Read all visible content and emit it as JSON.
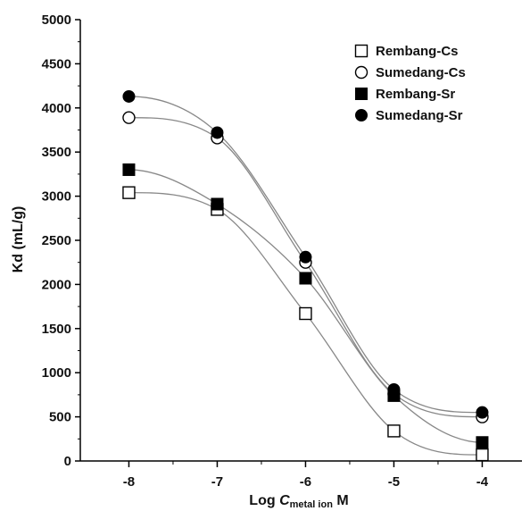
{
  "chart_data": {
    "type": "scatter",
    "xlabel": {
      "prefix": "Log ",
      "var": "C",
      "subscript": "metal ion",
      "suffix": " M"
    },
    "ylabel": "Kd (mL/g)",
    "x": [
      -8,
      -7,
      -6,
      -5,
      -4
    ],
    "xlim": [
      -8.55,
      -3.55
    ],
    "ylim": [
      0,
      5000
    ],
    "xticks": [
      "-8",
      "-7",
      "-6",
      "-5",
      "-4"
    ],
    "yticks": [
      "0",
      "500",
      "1000",
      "1500",
      "2000",
      "2500",
      "3000",
      "3500",
      "4000",
      "4500",
      "5000"
    ],
    "legend_position": "top-right",
    "series": [
      {
        "name": "Rembang-Cs",
        "marker": "open-square",
        "values": [
          3040,
          2850,
          1670,
          340,
          70
        ]
      },
      {
        "name": "Sumedang-Cs",
        "marker": "open-circle",
        "values": [
          3890,
          3660,
          2250,
          760,
          500
        ]
      },
      {
        "name": "Rembang-Sr",
        "marker": "filled-square",
        "values": [
          3300,
          2910,
          2070,
          740,
          210
        ]
      },
      {
        "name": "Sumedang-Sr",
        "marker": "filled-circle",
        "values": [
          4130,
          3720,
          2310,
          810,
          550
        ]
      }
    ],
    "fit_curves": "smooth sigmoidal fit line through each series",
    "grid": false,
    "marker_color": "#000000",
    "curve_color": "#888888"
  }
}
